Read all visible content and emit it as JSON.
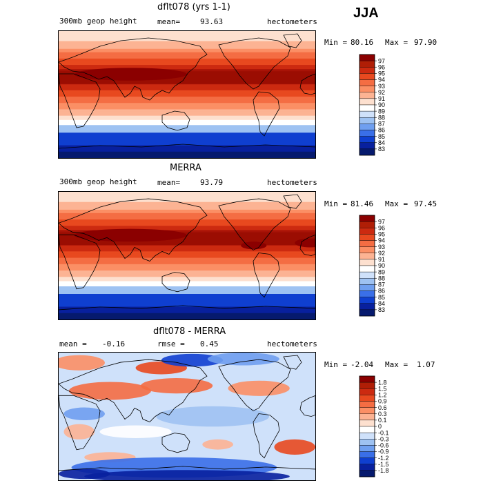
{
  "season": "JJA",
  "chart_data": [
    {
      "type": "heatmap",
      "title": "dflt078 (yrs 1-1)",
      "variable": "300mb geop height",
      "stat_left_label": "mean=",
      "stat_left_value": "93.63",
      "units": "hectometers",
      "min_label": "Min =",
      "min_value": "80.16",
      "max_label": "Max =",
      "max_value": "97.90",
      "legend_ticks": [
        "97",
        "96",
        "95",
        "94",
        "93",
        "92",
        "91",
        "90",
        "89",
        "88",
        "87",
        "86",
        "85",
        "84",
        "83"
      ],
      "legend_colors": [
        "#8b0000",
        "#b01e06",
        "#cc2a10",
        "#e8491f",
        "#f46d43",
        "#fb8f65",
        "#fcb393",
        "#fde0cf",
        "#ffffff",
        "#cfe1fa",
        "#9ec2f2",
        "#6f9ff0",
        "#3a6fe8",
        "#0f3fd0",
        "#08209e",
        "#061a6e"
      ],
      "map_style": "model"
    },
    {
      "type": "heatmap",
      "title": "MERRA",
      "variable": "300mb geop height",
      "stat_left_label": "mean=",
      "stat_left_value": "93.79",
      "units": "hectometers",
      "min_label": "Min =",
      "min_value": "81.46",
      "max_label": "Max =",
      "max_value": "97.45",
      "legend_ticks": [
        "97",
        "96",
        "95",
        "94",
        "93",
        "92",
        "91",
        "90",
        "89",
        "88",
        "87",
        "86",
        "85",
        "84",
        "83"
      ],
      "legend_colors": [
        "#8b0000",
        "#b01e06",
        "#cc2a10",
        "#e8491f",
        "#f46d43",
        "#fb8f65",
        "#fcb393",
        "#fde0cf",
        "#ffffff",
        "#cfe1fa",
        "#9ec2f2",
        "#6f9ff0",
        "#3a6fe8",
        "#0f3fd0",
        "#08209e",
        "#061a6e"
      ],
      "map_style": "obs"
    },
    {
      "type": "heatmap",
      "title": "dflt078 - MERRA",
      "stat_left_label": "mean =",
      "stat_left_value": "-0.16",
      "stat_mid_label": "rmse =",
      "stat_mid_value": "0.45",
      "units": "hectometers",
      "min_label": "Min =",
      "min_value": "-2.04",
      "max_label": "Max =",
      "max_value": "1.07",
      "legend_ticks": [
        "1.8",
        "1.5",
        "1.2",
        "0.9",
        "0.6",
        "0.3",
        "0.1",
        "0",
        "-0.1",
        "-0.3",
        "-0.6",
        "-0.9",
        "-1.2",
        "-1.5",
        "-1.8"
      ],
      "legend_colors": [
        "#8b0000",
        "#b01e06",
        "#cc2a10",
        "#e8491f",
        "#f46d43",
        "#fb8f65",
        "#fcb393",
        "#fde0cf",
        "#ffffff",
        "#cfe1fa",
        "#9ec2f2",
        "#6f9ff0",
        "#3a6fe8",
        "#0f3fd0",
        "#08209e",
        "#061a6e"
      ],
      "map_style": "diff"
    }
  ]
}
